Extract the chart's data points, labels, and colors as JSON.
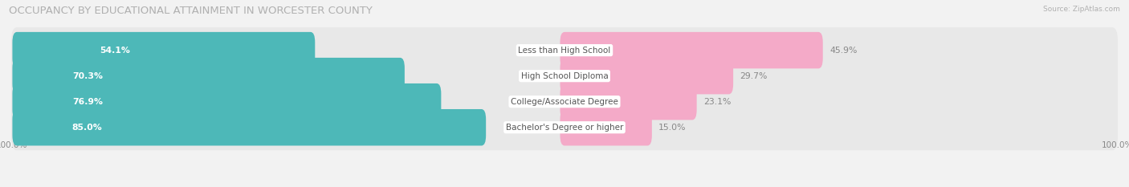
{
  "title": "OCCUPANCY BY EDUCATIONAL ATTAINMENT IN WORCESTER COUNTY",
  "source": "Source: ZipAtlas.com",
  "categories": [
    "Less than High School",
    "High School Diploma",
    "College/Associate Degree",
    "Bachelor's Degree or higher"
  ],
  "owner_pct": [
    54.1,
    70.3,
    76.9,
    85.0
  ],
  "renter_pct": [
    45.9,
    29.7,
    23.1,
    15.0
  ],
  "owner_color": "#4db8b8",
  "renter_color": "#f06fa0",
  "renter_color_light": "#f4aac8",
  "bg_color": "#f2f2f2",
  "bar_bg_color": "#e4e4e4",
  "row_bg_color": "#e8e8e8",
  "title_fontsize": 9.5,
  "label_fontsize": 7.8,
  "cat_fontsize": 7.5,
  "tick_fontsize": 7.5,
  "source_fontsize": 6.5,
  "owner_label_color": "#ffffff",
  "renter_label_color": "#888888",
  "cat_label_color": "#555555"
}
